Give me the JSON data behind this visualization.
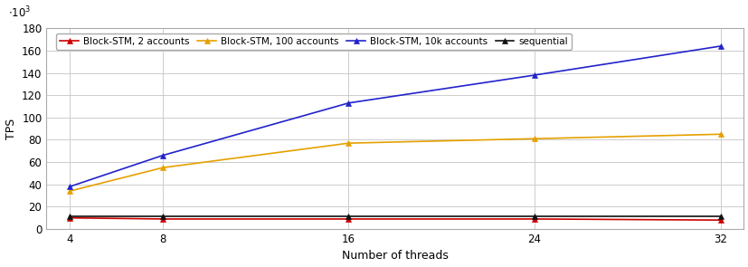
{
  "x": [
    4,
    8,
    16,
    24,
    32
  ],
  "series": [
    {
      "label": "Block-STM, 2 accounts",
      "color": "#cc0000",
      "marker": "^",
      "values": [
        10000,
        9000,
        9000,
        9000,
        8000
      ]
    },
    {
      "label": "Block-STM, 100 accounts",
      "color": "#e6a000",
      "marker": "^",
      "values": [
        34000,
        55000,
        77000,
        81000,
        85000
      ]
    },
    {
      "label": "Block-STM, 10k accounts",
      "color": "#2222cc",
      "marker": "^",
      "values": [
        38000,
        66000,
        113000,
        138000,
        164000
      ]
    },
    {
      "label": "sequential",
      "color": "#111111",
      "marker": "^",
      "values": [
        11000,
        11000,
        11000,
        11000,
        11000
      ]
    }
  ],
  "xlabel": "Number of threads",
  "ylabel": "TPS",
  "ylim": [
    0,
    180000
  ],
  "yticks": [
    0,
    20000,
    40000,
    60000,
    80000,
    100000,
    120000,
    140000,
    160000,
    180000
  ],
  "ytick_labels": [
    "0",
    "20",
    "40",
    "60",
    "80",
    "100",
    "120",
    "140",
    "160",
    "180"
  ],
  "xticks": [
    4,
    8,
    16,
    24,
    32
  ],
  "background_color": "#ffffff",
  "grid_color": "#cccccc"
}
